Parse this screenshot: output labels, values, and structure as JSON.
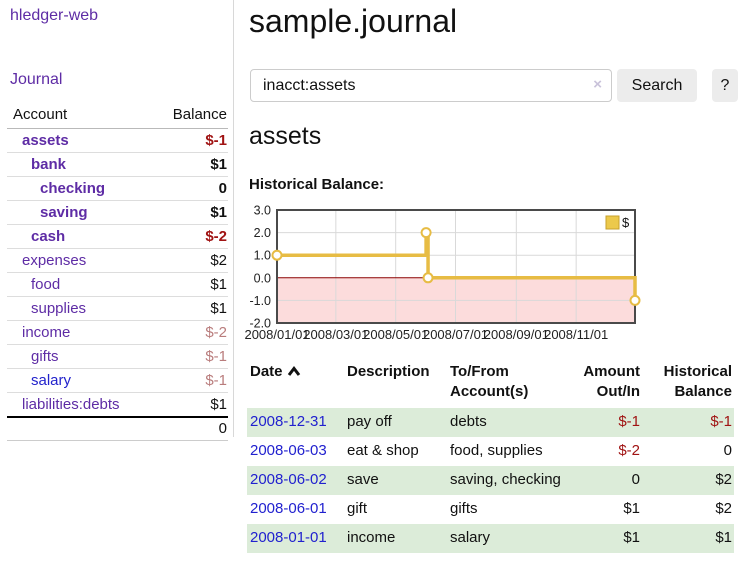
{
  "sidebar": {
    "brand": "hledger-web",
    "nav": [
      {
        "label": "Journal"
      }
    ],
    "accounts_table": {
      "headers": {
        "account": "Account",
        "balance": "Balance"
      },
      "rows": [
        {
          "name": "assets",
          "indent": 1,
          "bold": true,
          "balance": "$-1",
          "negative": true
        },
        {
          "name": "bank",
          "indent": 2,
          "bold": true,
          "balance": "$1",
          "negative": false
        },
        {
          "name": "checking",
          "indent": 3,
          "bold": true,
          "balance": "0",
          "negative": false
        },
        {
          "name": "saving",
          "indent": 3,
          "bold": true,
          "balance": "$1",
          "negative": false
        },
        {
          "name": "cash",
          "indent": 2,
          "bold": true,
          "balance": "$-2",
          "negative": true
        },
        {
          "name": "expenses",
          "indent": 1,
          "bold": false,
          "balance": "$2",
          "negative": false
        },
        {
          "name": "food",
          "indent": 2,
          "bold": false,
          "balance": "$1",
          "negative": false
        },
        {
          "name": "supplies",
          "indent": 2,
          "bold": false,
          "balance": "$1",
          "negative": false
        },
        {
          "name": "income",
          "indent": 1,
          "bold": false,
          "balance": "$-2",
          "negative": true
        },
        {
          "name": "gifts",
          "indent": 2,
          "bold": false,
          "balance": "$-1",
          "negative": true
        },
        {
          "name": "salary",
          "indent": 2,
          "bold": false,
          "balance": "$-1",
          "negative": true,
          "blue": true
        },
        {
          "name": "liabilities:debts",
          "indent": 1,
          "bold": false,
          "balance": "$1",
          "negative": false
        }
      ],
      "total": "0"
    }
  },
  "header": {
    "title": "sample.journal"
  },
  "search": {
    "value": "inacct:assets",
    "clear_icon": "×",
    "button": "Search",
    "help_button": "?"
  },
  "account_page": {
    "heading": "assets",
    "chart_label": "Historical Balance:"
  },
  "chart_data": {
    "type": "line",
    "step": true,
    "title": "Historical Balance:",
    "legend": [
      "$"
    ],
    "legend_position": "top-right",
    "grid": true,
    "ylim": [
      -2.0,
      3.0
    ],
    "y_ticks": [
      3.0,
      2.0,
      1.0,
      0.0,
      -1.0,
      -2.0
    ],
    "x_range": [
      "2008-01-01",
      "2008-12-31"
    ],
    "x_ticks": [
      {
        "date": "2008-01-01",
        "label": "2008/01/01"
      },
      {
        "date": "2008-03-01",
        "label": "2008/03/01"
      },
      {
        "date": "2008-05-01",
        "label": "2008/05/01"
      },
      {
        "date": "2008-07-01",
        "label": "2008/07/01"
      },
      {
        "date": "2008-09-01",
        "label": "2008/09/01"
      },
      {
        "date": "2008-11-01",
        "label": "2008/11/01"
      }
    ],
    "series": [
      {
        "name": "$",
        "points": [
          {
            "x": "2008-01-01",
            "y": 1
          },
          {
            "x": "2008-06-01",
            "y": 2
          },
          {
            "x": "2008-06-03",
            "y": 0
          },
          {
            "x": "2008-12-31",
            "y": -1
          }
        ]
      }
    ],
    "negative_region_shaded": true
  },
  "register_table": {
    "columns": {
      "date": "Date",
      "description": "Description",
      "accounts": "To/From Account(s)",
      "amount": "Amount Out/In",
      "balance": "Historical Balance"
    },
    "sort": {
      "column": "Date",
      "direction": "asc"
    },
    "rows": [
      {
        "date": "2008-12-31",
        "description": "pay off",
        "accounts": "debts",
        "amount": "$-1",
        "amount_negative": true,
        "balance": "$-1",
        "balance_negative": true
      },
      {
        "date": "2008-06-03",
        "description": "eat & shop",
        "accounts": "food, supplies",
        "amount": "$-2",
        "amount_negative": true,
        "balance": "0",
        "balance_negative": false
      },
      {
        "date": "2008-06-02",
        "description": "save",
        "accounts": "saving, checking",
        "amount": "0",
        "amount_negative": false,
        "balance": "$2",
        "balance_negative": false
      },
      {
        "date": "2008-06-01",
        "description": "gift",
        "accounts": "gifts",
        "amount": "$1",
        "amount_negative": false,
        "balance": "$2",
        "balance_negative": false
      },
      {
        "date": "2008-01-01",
        "description": "income",
        "accounts": "salary",
        "amount": "$1",
        "amount_negative": false,
        "balance": "$1",
        "balance_negative": false
      }
    ]
  },
  "colors": {
    "link_purple": "#5e2ca5",
    "link_blue": "#2121cf",
    "negative_red": "#a01313",
    "negative_muted": "#b97c7c",
    "row_green": "#dcecd9",
    "chart_line_gold": "#e7bc44",
    "chart_negative_fill": "#fcdcdc",
    "chart_zero_line": "#8b0000",
    "chart_grid": "#d9d9d9",
    "chart_border": "#4a4a4a",
    "button_bg": "#ececec"
  }
}
